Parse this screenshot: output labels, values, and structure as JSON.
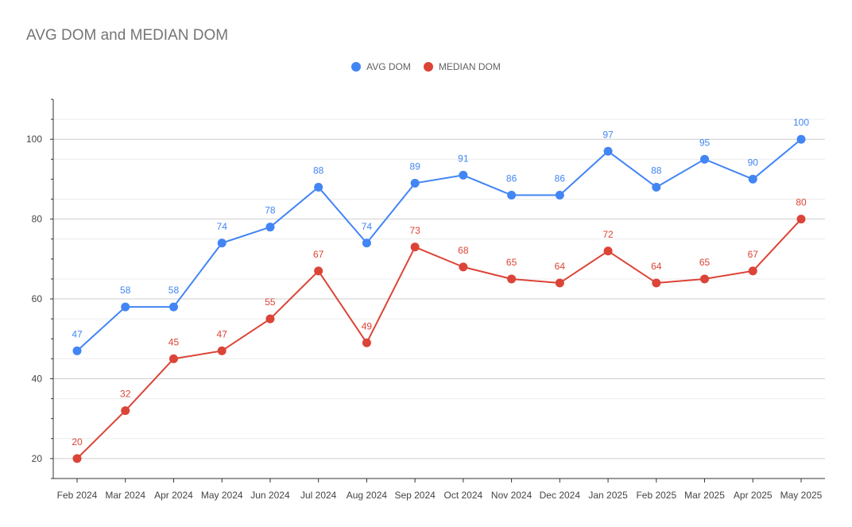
{
  "chart_data": {
    "type": "line",
    "title": "AVG DOM and MEDIAN DOM",
    "categories": [
      "Feb 2024",
      "Mar 2024",
      "Apr 2024",
      "May 2024",
      "Jun 2024",
      "Jul 2024",
      "Aug 2024",
      "Sep 2024",
      "Oct 2024",
      "Nov 2024",
      "Dec 2024",
      "Jan 2025",
      "Feb 2025",
      "Mar 2025",
      "Apr 2025",
      "May 2025"
    ],
    "series": [
      {
        "name": "AVG DOM",
        "color": "#4285f4",
        "values": [
          47,
          58,
          58,
          74,
          78,
          88,
          74,
          89,
          91,
          86,
          86,
          97,
          88,
          95,
          90,
          100
        ]
      },
      {
        "name": "MEDIAN DOM",
        "color": "#db4437",
        "values": [
          20,
          32,
          45,
          47,
          55,
          67,
          49,
          73,
          68,
          65,
          64,
          72,
          64,
          65,
          67,
          80
        ]
      }
    ],
    "yticks": [
      20,
      40,
      60,
      80,
      100
    ],
    "ylim": [
      15,
      110
    ],
    "grid": true,
    "legend_position": "top"
  }
}
